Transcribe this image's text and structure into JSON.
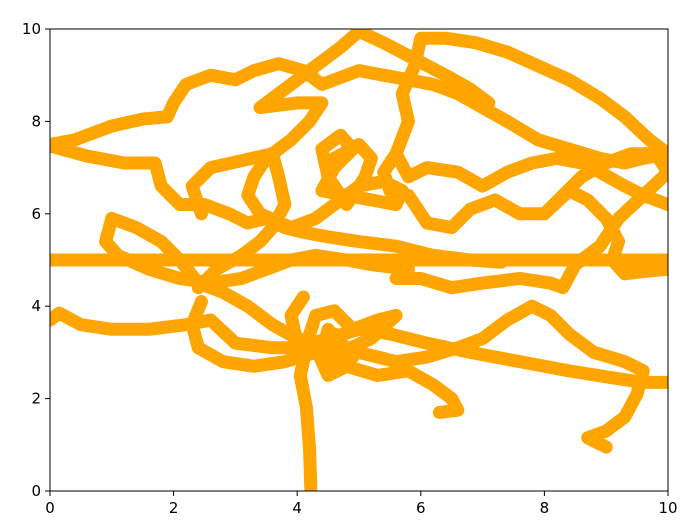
{
  "chart_data": {
    "type": "line",
    "title": "",
    "xlabel": "",
    "ylabel": "",
    "xlim": [
      0,
      10
    ],
    "ylim": [
      0,
      10
    ],
    "x_ticks": [
      0,
      2,
      4,
      6,
      8,
      10
    ],
    "y_ticks": [
      0,
      2,
      4,
      6,
      8,
      10
    ],
    "grid": false,
    "legend": "none",
    "colors": {
      "series": "#ffa500",
      "axes": "#000000",
      "background": "#ffffff"
    },
    "series": [
      {
        "points": [
          [
            4.22,
            0.05
          ],
          [
            4.2,
            0.9
          ],
          [
            4.15,
            1.8
          ],
          [
            4.05,
            2.5
          ],
          [
            4.18,
            3.3
          ],
          [
            4.3,
            3.8
          ],
          [
            4.6,
            3.9
          ],
          [
            4.9,
            3.5
          ],
          [
            5.3,
            3.7
          ],
          [
            5.6,
            3.8
          ],
          [
            5.2,
            3.3
          ],
          [
            4.7,
            3.0
          ],
          [
            4.5,
            3.5
          ],
          [
            4.4,
            3.0
          ],
          [
            4.6,
            2.6
          ],
          [
            4.9,
            2.9
          ],
          [
            4.6,
            3.4
          ],
          [
            4.3,
            3.1
          ],
          [
            4.5,
            2.5
          ],
          [
            4.8,
            2.7
          ],
          [
            4.6,
            3.2
          ],
          [
            4.2,
            3.0
          ],
          [
            4.0,
            3.2
          ],
          [
            3.9,
            3.8
          ],
          [
            4.1,
            4.2
          ]
        ]
      },
      {
        "points": [
          [
            0,
            7.5
          ],
          [
            0.4,
            7.6
          ],
          [
            1.0,
            7.9
          ],
          [
            1.5,
            8.05
          ],
          [
            1.9,
            8.1
          ],
          [
            2.0,
            8.4
          ],
          [
            2.2,
            8.8
          ],
          [
            2.6,
            9.0
          ],
          [
            3.0,
            8.9
          ],
          [
            3.3,
            9.1
          ],
          [
            3.7,
            9.25
          ],
          [
            4.1,
            9.1
          ],
          [
            4.4,
            8.8
          ],
          [
            4.6,
            8.9
          ],
          [
            5.0,
            9.1
          ],
          [
            5.4,
            9.0
          ],
          [
            5.8,
            8.9
          ],
          [
            6.2,
            8.8
          ],
          [
            6.6,
            8.6
          ],
          [
            7.0,
            8.3
          ],
          [
            7.4,
            8.0
          ],
          [
            7.9,
            7.6
          ],
          [
            8.4,
            7.4
          ],
          [
            8.9,
            7.2
          ],
          [
            9.3,
            7.1
          ],
          [
            9.6,
            7.2
          ],
          [
            10.0,
            7.3
          ]
        ]
      },
      {
        "points": [
          [
            0.05,
            7.45
          ],
          [
            0.6,
            7.25
          ],
          [
            1.2,
            7.1
          ],
          [
            1.7,
            7.1
          ],
          [
            1.8,
            6.6
          ],
          [
            2.1,
            6.2
          ],
          [
            2.5,
            6.2
          ],
          [
            2.9,
            6.0
          ],
          [
            3.2,
            5.8
          ],
          [
            3.5,
            5.9
          ],
          [
            3.8,
            5.7
          ],
          [
            4.1,
            5.6
          ],
          [
            4.5,
            5.5
          ],
          [
            5.0,
            5.4
          ],
          [
            5.6,
            5.3
          ],
          [
            6.2,
            5.1
          ],
          [
            6.8,
            5.0
          ],
          [
            7.3,
            4.95
          ]
        ]
      },
      {
        "points": [
          [
            0,
            5.0
          ],
          [
            10,
            5.0
          ]
        ]
      },
      {
        "points": [
          [
            0,
            3.7
          ],
          [
            0.15,
            3.85
          ],
          [
            0.5,
            3.6
          ],
          [
            1.0,
            3.5
          ],
          [
            1.6,
            3.5
          ],
          [
            2.2,
            3.6
          ],
          [
            2.6,
            3.7
          ],
          [
            3.0,
            3.2
          ],
          [
            3.6,
            3.1
          ],
          [
            4.0,
            3.1
          ],
          [
            4.5,
            3.3
          ],
          [
            5.0,
            3.5
          ],
          [
            5.5,
            3.4
          ],
          [
            6.1,
            3.2
          ],
          [
            6.8,
            3.0
          ],
          [
            7.6,
            2.8
          ],
          [
            8.4,
            2.6
          ],
          [
            9.1,
            2.45
          ],
          [
            9.6,
            2.35
          ],
          [
            10.0,
            2.35
          ]
        ]
      },
      {
        "points": [
          [
            2.45,
            4.1
          ],
          [
            2.3,
            3.6
          ],
          [
            2.4,
            3.1
          ],
          [
            2.8,
            2.8
          ],
          [
            3.3,
            2.7
          ],
          [
            3.8,
            2.8
          ],
          [
            4.3,
            3.0
          ],
          [
            4.8,
            2.7
          ],
          [
            5.3,
            2.5
          ],
          [
            5.8,
            2.6
          ],
          [
            6.2,
            2.3
          ],
          [
            6.5,
            2.0
          ],
          [
            6.6,
            1.75
          ],
          [
            6.3,
            1.7
          ]
        ]
      },
      {
        "points": [
          [
            1.0,
            5.9
          ],
          [
            0.9,
            5.4
          ],
          [
            1.1,
            5.1
          ],
          [
            1.6,
            4.8
          ],
          [
            2.1,
            4.6
          ],
          [
            2.6,
            4.5
          ],
          [
            3.1,
            4.6
          ],
          [
            3.5,
            4.8
          ],
          [
            3.9,
            5.0
          ],
          [
            4.3,
            5.1
          ],
          [
            4.8,
            5.0
          ],
          [
            5.2,
            4.9
          ],
          [
            5.8,
            4.8
          ]
        ]
      },
      {
        "points": [
          [
            1.0,
            5.9
          ],
          [
            1.4,
            5.7
          ],
          [
            1.8,
            5.4
          ],
          [
            2.1,
            5.0
          ],
          [
            2.4,
            4.5
          ],
          [
            2.8,
            4.3
          ],
          [
            3.2,
            4.0
          ],
          [
            3.6,
            3.6
          ],
          [
            4.0,
            3.3
          ],
          [
            4.5,
            3.1
          ],
          [
            5.0,
            3.0
          ],
          [
            5.6,
            2.8
          ],
          [
            6.1,
            2.9
          ],
          [
            6.6,
            3.1
          ],
          [
            7.0,
            3.3
          ],
          [
            7.4,
            3.7
          ],
          [
            7.8,
            4.0
          ],
          [
            8.1,
            3.8
          ],
          [
            8.4,
            3.4
          ],
          [
            8.8,
            3.0
          ],
          [
            9.3,
            2.8
          ],
          [
            9.6,
            2.6
          ],
          [
            9.5,
            2.1
          ],
          [
            9.3,
            1.6
          ],
          [
            9.0,
            1.3
          ],
          [
            8.7,
            1.15
          ],
          [
            9.0,
            0.95
          ]
        ]
      },
      {
        "points": [
          [
            2.45,
            6.0
          ],
          [
            2.3,
            6.6
          ],
          [
            2.6,
            7.0
          ],
          [
            3.1,
            7.15
          ],
          [
            3.6,
            7.3
          ],
          [
            3.7,
            6.8
          ],
          [
            3.8,
            6.2
          ],
          [
            3.6,
            5.7
          ],
          [
            3.4,
            5.4
          ],
          [
            3.1,
            5.1
          ],
          [
            2.7,
            4.8
          ],
          [
            2.4,
            4.4
          ]
        ]
      },
      {
        "points": [
          [
            3.4,
            8.3
          ],
          [
            4.0,
            8.4
          ],
          [
            4.4,
            8.4
          ],
          [
            4.2,
            8.0
          ],
          [
            3.9,
            7.6
          ],
          [
            3.5,
            7.2
          ],
          [
            3.3,
            6.8
          ],
          [
            3.2,
            6.4
          ],
          [
            3.4,
            6.0
          ],
          [
            3.9,
            5.7
          ],
          [
            4.3,
            5.9
          ],
          [
            4.6,
            6.2
          ],
          [
            5.0,
            6.6
          ],
          [
            5.4,
            6.7
          ],
          [
            5.7,
            6.5
          ],
          [
            5.6,
            6.2
          ],
          [
            5.2,
            6.3
          ],
          [
            4.8,
            6.4
          ],
          [
            4.4,
            6.5
          ],
          [
            4.6,
            7.0
          ],
          [
            4.9,
            7.4
          ],
          [
            4.7,
            7.7
          ],
          [
            4.4,
            7.4
          ],
          [
            4.5,
            6.8
          ],
          [
            4.8,
            6.2
          ],
          [
            5.1,
            6.8
          ],
          [
            5.2,
            7.2
          ],
          [
            5.0,
            7.5
          ],
          [
            4.6,
            7.2
          ]
        ]
      },
      {
        "points": [
          [
            3.4,
            8.3
          ],
          [
            3.8,
            8.7
          ],
          [
            4.3,
            9.2
          ],
          [
            4.7,
            9.6
          ],
          [
            5.0,
            9.95
          ],
          [
            5.4,
            9.7
          ],
          [
            5.9,
            9.35
          ],
          [
            6.4,
            9.0
          ],
          [
            6.8,
            8.7
          ],
          [
            7.1,
            8.4
          ]
        ]
      },
      {
        "points": [
          [
            5.6,
            4.6
          ],
          [
            6.0,
            4.6
          ],
          [
            6.5,
            4.4
          ],
          [
            7.0,
            4.5
          ],
          [
            7.6,
            4.6
          ],
          [
            8.1,
            4.5
          ],
          [
            8.3,
            4.4
          ],
          [
            8.5,
            4.9
          ],
          [
            8.9,
            5.3
          ],
          [
            9.2,
            5.9
          ],
          [
            9.6,
            6.4
          ],
          [
            10.0,
            6.9
          ],
          [
            9.8,
            7.3
          ],
          [
            9.4,
            7.3
          ],
          [
            9.0,
            7.1
          ],
          [
            8.6,
            6.8
          ],
          [
            8.3,
            6.4
          ],
          [
            8.0,
            6.0
          ],
          [
            7.6,
            6.0
          ],
          [
            7.2,
            6.3
          ],
          [
            6.8,
            6.1
          ],
          [
            6.5,
            5.7
          ],
          [
            6.1,
            5.8
          ],
          [
            5.8,
            6.4
          ],
          [
            5.5,
            6.5
          ],
          [
            5.4,
            6.9
          ],
          [
            5.6,
            7.3
          ],
          [
            5.8,
            8.0
          ],
          [
            5.7,
            8.6
          ],
          [
            5.9,
            9.2
          ],
          [
            6.0,
            9.8
          ],
          [
            6.4,
            9.8
          ],
          [
            6.9,
            9.7
          ],
          [
            7.4,
            9.5
          ],
          [
            7.9,
            9.2
          ],
          [
            8.4,
            8.9
          ],
          [
            8.9,
            8.5
          ],
          [
            9.3,
            8.1
          ],
          [
            9.7,
            7.6
          ],
          [
            10.0,
            7.3
          ]
        ]
      },
      {
        "points": [
          [
            5.6,
            7.3
          ],
          [
            5.8,
            6.8
          ],
          [
            6.1,
            7.0
          ],
          [
            6.6,
            6.9
          ],
          [
            7.0,
            6.6
          ],
          [
            7.4,
            6.9
          ],
          [
            7.8,
            7.1
          ],
          [
            8.2,
            7.2
          ],
          [
            8.6,
            7.1
          ],
          [
            8.9,
            6.9
          ],
          [
            9.3,
            6.6
          ],
          [
            9.6,
            6.4
          ],
          [
            10.0,
            6.2
          ]
        ]
      },
      {
        "points": [
          [
            8.0,
            6.0
          ],
          [
            8.4,
            6.5
          ],
          [
            8.7,
            6.3
          ],
          [
            9.0,
            5.9
          ],
          [
            9.2,
            5.4
          ],
          [
            9.1,
            5.0
          ],
          [
            9.3,
            4.7
          ],
          [
            9.6,
            4.75
          ],
          [
            10.0,
            4.8
          ]
        ]
      },
      {
        "points": [
          [
            9.1,
            5.0
          ],
          [
            9.5,
            4.9
          ],
          [
            10.0,
            4.9
          ]
        ]
      }
    ]
  }
}
